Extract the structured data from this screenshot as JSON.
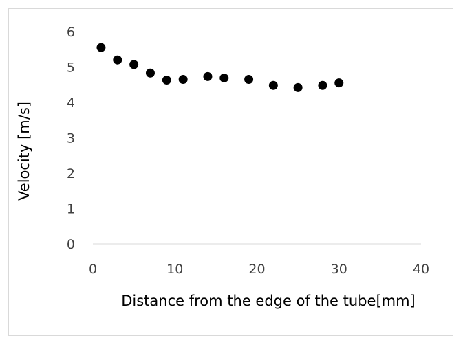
{
  "chart_data": {
    "type": "scatter",
    "title": "",
    "xlabel": "Distance from the edge of the tube[mm]",
    "ylabel": "Velocity [m/s]",
    "xlim": [
      0,
      40
    ],
    "ylim": [
      0,
      6
    ],
    "x_ticks": [
      "0",
      "10",
      "20",
      "30",
      "40"
    ],
    "y_ticks": [
      "0",
      "1",
      "2",
      "3",
      "4",
      "5",
      "6"
    ],
    "grid": false,
    "legend": "none",
    "marker_color": "#000000",
    "series": [
      {
        "x": [
          1,
          3,
          5,
          7,
          9,
          11,
          14,
          16,
          19,
          22,
          25,
          28,
          30
        ],
        "y": [
          5.55,
          5.2,
          5.07,
          4.83,
          4.63,
          4.65,
          4.73,
          4.69,
          4.65,
          4.48,
          4.42,
          4.48,
          4.55
        ]
      }
    ]
  }
}
